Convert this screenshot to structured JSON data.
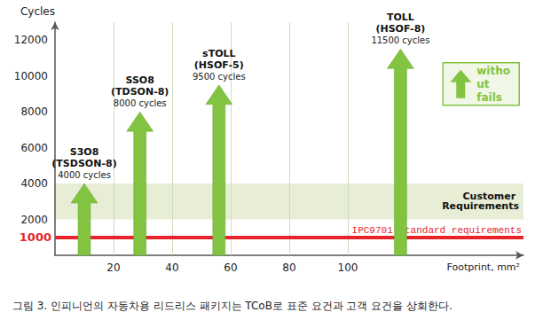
{
  "chart_data": {
    "type": "arrow",
    "x_label": "Footprint, mm²",
    "y_label": "Cycles",
    "caption": "그림 3. 인피니언의 자동차용 리드리스 패키지는 TCoB로 표준 요건과 고객 요건을 상회한다.",
    "xlim": [
      0,
      160
    ],
    "xticks": [
      20,
      40,
      60,
      80,
      100
    ],
    "ylim": [
      0,
      13000
    ],
    "yticks": [
      2000,
      4000,
      6000,
      8000,
      10000,
      12000
    ],
    "grid": true,
    "legend": "upper right",
    "series": [
      {
        "name": "without fails",
        "color": "#82c341",
        "labels": [
          "S3O8",
          "SSO8",
          "sTOLL",
          "TOLL"
        ],
        "packages": [
          "(TSDSON-8)",
          "(TDSON-8)",
          "(HSOF-5)",
          "(HSOF-8)"
        ],
        "x": [
          10,
          29,
          56,
          118
        ],
        "values": [
          4000,
          8000,
          9500,
          11500
        ],
        "value_labels": [
          "4000 cycles",
          "8000 cycles",
          "9500 cycles",
          "11500 cycles"
        ]
      }
    ],
    "bands": [
      {
        "y": [
          2000,
          4000
        ],
        "label": "Customer Requirements",
        "color": "#e4ebcf"
      }
    ],
    "reference_lines": [
      {
        "y": 1000,
        "label": "IPC9701 standard requirements",
        "value_label": "1000",
        "color": "#e8232a"
      }
    ]
  }
}
